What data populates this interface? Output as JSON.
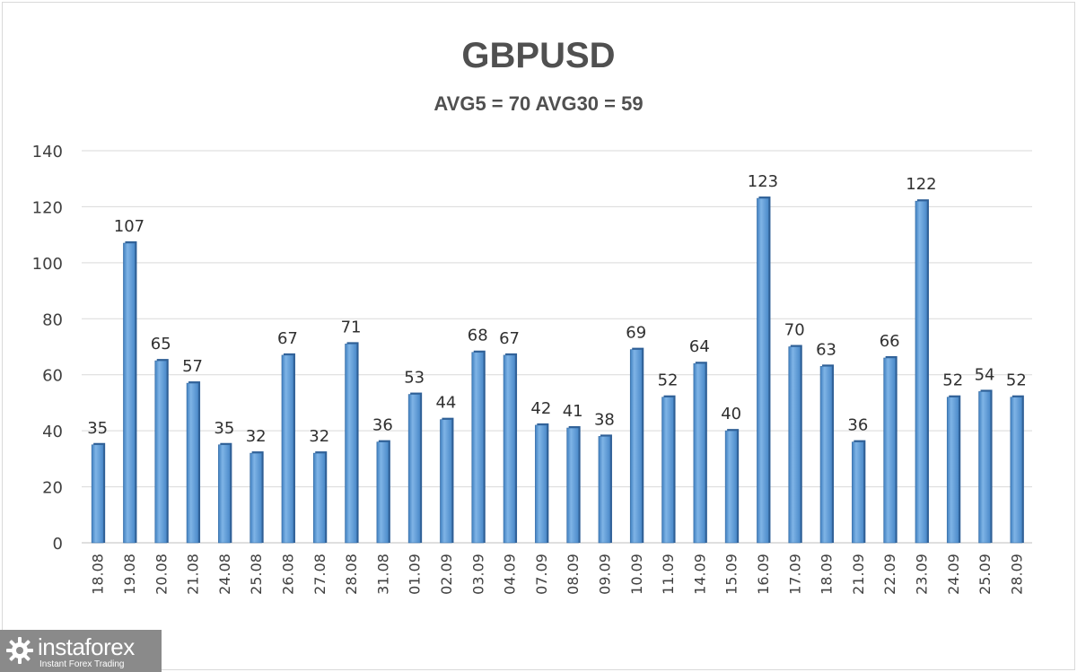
{
  "chart_data": {
    "type": "bar",
    "title": "GBPUSD",
    "subtitle": "AVG5 = 70 AVG30 = 59",
    "categories": [
      "18.08",
      "19.08",
      "20.08",
      "21.08",
      "24.08",
      "25.08",
      "26.08",
      "27.08",
      "28.08",
      "31.08",
      "01.09",
      "02.09",
      "03.09",
      "04.09",
      "07.09",
      "08.09",
      "09.09",
      "10.09",
      "11.09",
      "14.09",
      "15.09",
      "16.09",
      "17.09",
      "18.09",
      "21.09",
      "22.09",
      "23.09",
      "24.09",
      "25.09",
      "28.09"
    ],
    "values": [
      35,
      107,
      65,
      57,
      35,
      32,
      67,
      32,
      71,
      36,
      53,
      44,
      68,
      67,
      42,
      41,
      38,
      69,
      52,
      64,
      40,
      123,
      70,
      63,
      36,
      66,
      122,
      52,
      54,
      52
    ],
    "ylim": [
      0,
      140
    ],
    "yticks": [
      0,
      20,
      40,
      60,
      80,
      100,
      120,
      140
    ],
    "grid": true,
    "data_labels": true,
    "bar_color": "#5b9bd5"
  },
  "watermark": {
    "brand": "instaforex",
    "tagline": "Instant Forex Trading"
  }
}
